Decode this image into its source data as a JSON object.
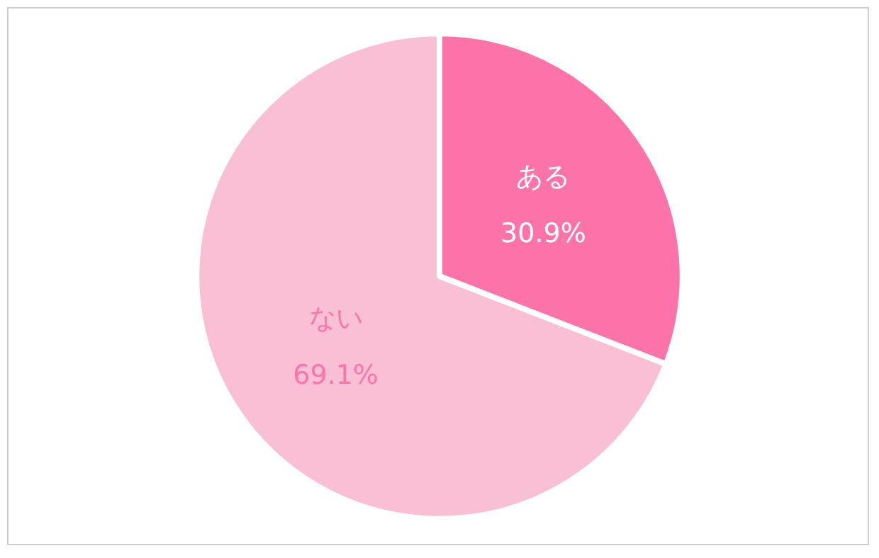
{
  "chart_data": {
    "type": "pie",
    "categories": [
      "ある",
      "ない"
    ],
    "values": [
      30.9,
      69.1
    ],
    "colors": [
      "#fd74ab",
      "#f9c0d5"
    ],
    "value_labels": [
      "30.9%",
      "69.1%"
    ],
    "legend": false
  }
}
